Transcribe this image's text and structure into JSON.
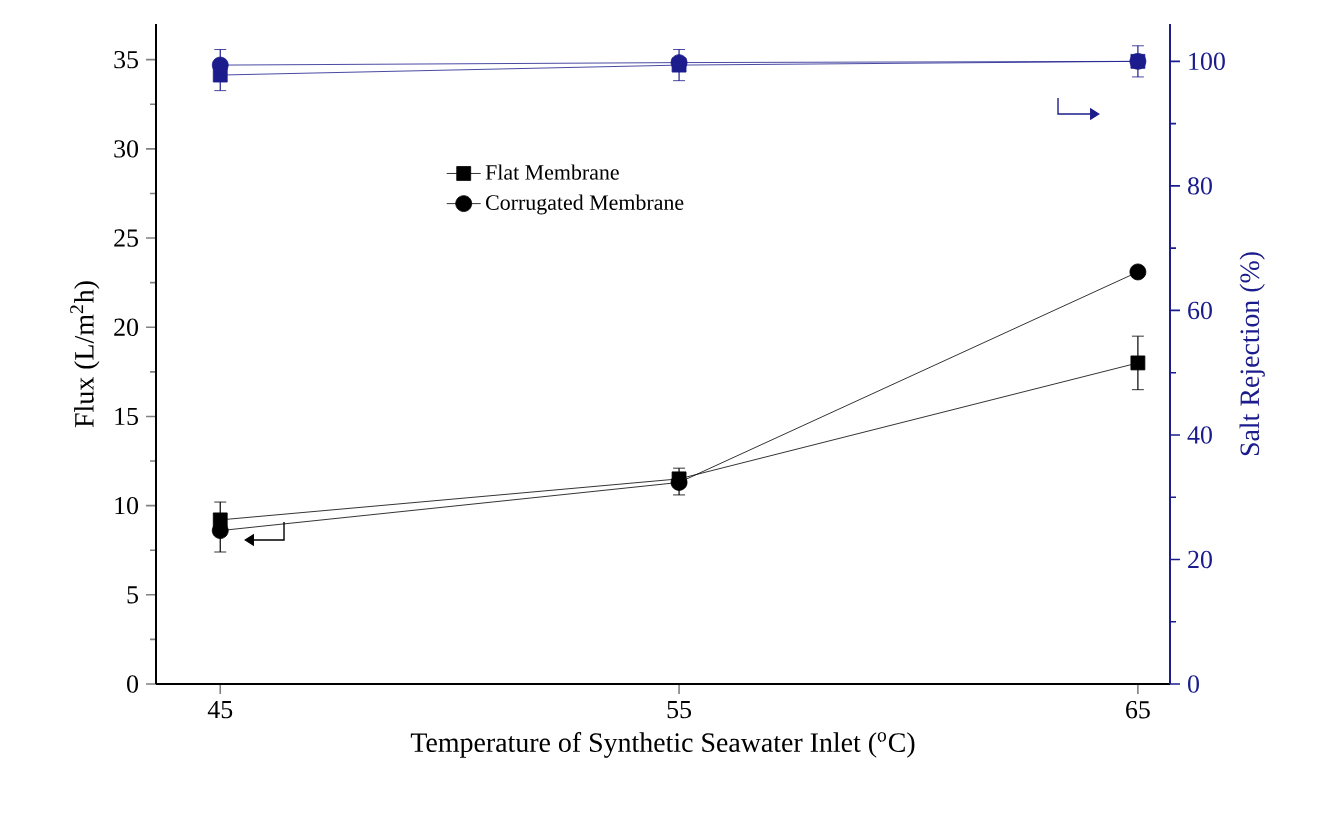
{
  "chart_data": {
    "type": "line",
    "xlabel": "Temperature of Synthetic Seawater Inlet ($^{o}$C)",
    "ylabel": "Flux (L/m$^{2}$h)",
    "y2label": "Salt Rejection (%)",
    "x": [
      45,
      55,
      65
    ],
    "xlim": [
      43.6,
      65.7
    ],
    "xticks": [
      45,
      55,
      65
    ],
    "ylim": [
      0,
      37
    ],
    "yticks": [
      0,
      5,
      10,
      15,
      20,
      25,
      30,
      35
    ],
    "y2lim": [
      0,
      106
    ],
    "y2ticks": [
      0,
      20,
      40,
      60,
      80,
      100
    ],
    "legend": "top",
    "grid": false,
    "series": [
      {
        "name": "Flat Membrane",
        "color": "#000000",
        "marker": "square",
        "values": [
          9.2,
          11.5,
          18.0
        ],
        "errors": [
          [
            9.2,
            10.2
          ],
          [
            11.5,
            12.1
          ],
          1.5
        ]
      },
      {
        "name": "Corrugated Membrane",
        "color": "#000000",
        "marker": "circle",
        "values": [
          8.6,
          11.3,
          23.1
        ],
        "errors": [
          [
            7.4,
            8.6
          ],
          [
            10.6,
            11.3
          ],
          null
        ]
      },
      {
        "color": "#1c1c8c",
        "marker": "square",
        "axis": "y2",
        "values": [
          97.8,
          99.4,
          100.0
        ],
        "errors": [
          [
            95.3,
            97.8
          ],
          2.5,
          2.5
        ]
      },
      {
        "color": "#1c1c8c",
        "marker": "circle",
        "axis": "y2",
        "values": [
          99.4,
          99.8,
          100.0
        ],
        "errors": [
          [
            99.4,
            101.9
          ],
          null,
          null
        ]
      }
    ]
  }
}
